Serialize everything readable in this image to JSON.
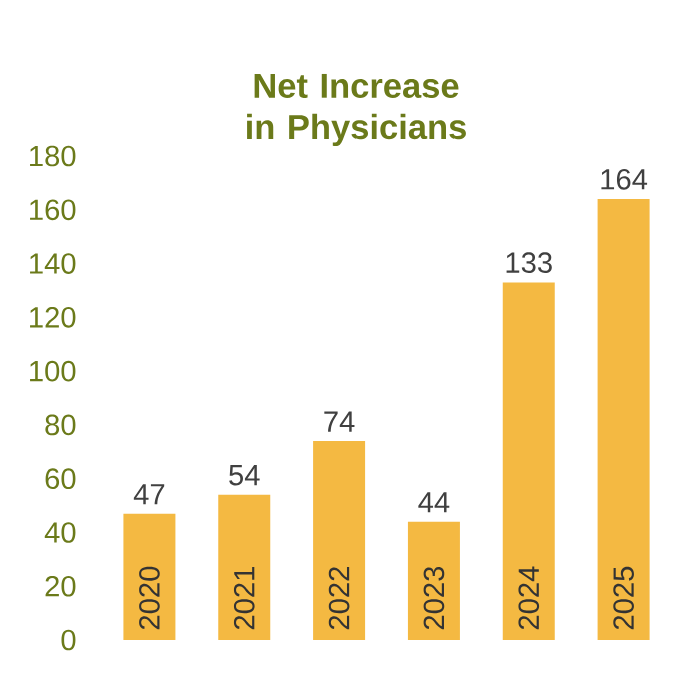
{
  "chart_data": {
    "type": "bar",
    "title": "Net Increase in Physicians",
    "categories": [
      "2020",
      "2021",
      "2022",
      "2023",
      "2024",
      "2025"
    ],
    "values": [
      47,
      54,
      74,
      44,
      133,
      164
    ],
    "color": "#f4b942",
    "ylim": [
      0,
      180
    ],
    "yticks": [
      0,
      20,
      40,
      60,
      80,
      100,
      120,
      140,
      160,
      180
    ],
    "data_labels": true
  }
}
